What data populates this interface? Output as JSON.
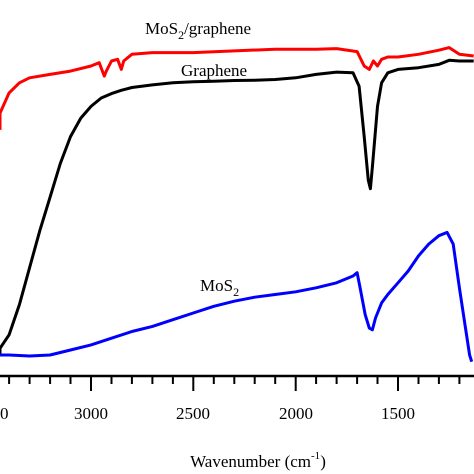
{
  "chart_data": {
    "type": "line",
    "xlabel": "Wavenumber (cm",
    "xlabel_sup": "-1",
    "xlabel_close": ")",
    "x_reversed": true,
    "xlim": [
      3500,
      1130
    ],
    "x_ticks_labeled": [
      3000,
      2500,
      2000,
      1500
    ],
    "x_tick_labels": [
      "3000",
      "2500",
      "2000",
      "1500"
    ],
    "left_partial_tick_label": "0",
    "ylim": [
      0,
      100
    ],
    "grid": false,
    "legend": "none",
    "series": [
      {
        "name": "MoS2/graphene",
        "label_text": "MoS",
        "label_sub": "2",
        "label_rest": "/graphene",
        "color": "#ff0000",
        "points": [
          [
            3500,
            67
          ],
          [
            3450,
            72
          ],
          [
            3400,
            78
          ],
          [
            3350,
            81
          ],
          [
            3300,
            82.5
          ],
          [
            3200,
            83.5
          ],
          [
            3100,
            84.5
          ],
          [
            3000,
            86
          ],
          [
            2960,
            87
          ],
          [
            2935,
            83
          ],
          [
            2925,
            84.5
          ],
          [
            2900,
            87.5
          ],
          [
            2870,
            88
          ],
          [
            2852,
            85
          ],
          [
            2840,
            87.5
          ],
          [
            2800,
            89.5
          ],
          [
            2700,
            90
          ],
          [
            2500,
            90
          ],
          [
            2300,
            90.5
          ],
          [
            2100,
            91
          ],
          [
            1900,
            91
          ],
          [
            1800,
            91.2
          ],
          [
            1700,
            90.3
          ],
          [
            1665,
            86
          ],
          [
            1640,
            85
          ],
          [
            1620,
            87.5
          ],
          [
            1600,
            86
          ],
          [
            1580,
            88
          ],
          [
            1550,
            88.7
          ],
          [
            1500,
            88.7
          ],
          [
            1400,
            89.5
          ],
          [
            1300,
            90.7
          ],
          [
            1250,
            91.5
          ],
          [
            1200,
            89.5
          ],
          [
            1130,
            89
          ]
        ]
      },
      {
        "name": "Graphene",
        "label_text": "Graphene",
        "color": "#000000",
        "points": [
          [
            3500,
            0
          ],
          [
            3450,
            2
          ],
          [
            3400,
            6
          ],
          [
            3350,
            15
          ],
          [
            3300,
            26
          ],
          [
            3250,
            37
          ],
          [
            3200,
            47
          ],
          [
            3150,
            57
          ],
          [
            3100,
            65
          ],
          [
            3050,
            70.5
          ],
          [
            3000,
            74
          ],
          [
            2950,
            76.5
          ],
          [
            2900,
            77.8
          ],
          [
            2850,
            78.8
          ],
          [
            2800,
            79.6
          ],
          [
            2700,
            80.4
          ],
          [
            2600,
            81
          ],
          [
            2500,
            81.3
          ],
          [
            2400,
            81.5
          ],
          [
            2300,
            81.7
          ],
          [
            2200,
            81.8
          ],
          [
            2100,
            82
          ],
          [
            2000,
            82.5
          ],
          [
            1900,
            83.5
          ],
          [
            1800,
            84.2
          ],
          [
            1720,
            84
          ],
          [
            1690,
            80
          ],
          [
            1665,
            65
          ],
          [
            1645,
            52
          ],
          [
            1635,
            49.5
          ],
          [
            1625,
            56
          ],
          [
            1600,
            74
          ],
          [
            1580,
            81
          ],
          [
            1550,
            84
          ],
          [
            1500,
            85
          ],
          [
            1400,
            85.5
          ],
          [
            1300,
            86.5
          ],
          [
            1250,
            87.7
          ],
          [
            1200,
            87.5
          ],
          [
            1130,
            87.5
          ]
        ]
      },
      {
        "name": "MoS2",
        "label_text": "MoS",
        "label_sub": "2",
        "color": "#0000ff",
        "points": [
          [
            3500,
            0
          ],
          [
            3400,
            0
          ],
          [
            3300,
            -0.3
          ],
          [
            3200,
            0
          ],
          [
            3100,
            1.5
          ],
          [
            3000,
            3
          ],
          [
            2900,
            5
          ],
          [
            2800,
            7
          ],
          [
            2700,
            8.5
          ],
          [
            2600,
            10.5
          ],
          [
            2500,
            12.5
          ],
          [
            2400,
            14.5
          ],
          [
            2300,
            16
          ],
          [
            2200,
            17.2
          ],
          [
            2100,
            18
          ],
          [
            2000,
            18.8
          ],
          [
            1900,
            20
          ],
          [
            1800,
            21.5
          ],
          [
            1720,
            23.5
          ],
          [
            1700,
            24.5
          ],
          [
            1685,
            20
          ],
          [
            1660,
            12
          ],
          [
            1640,
            8
          ],
          [
            1625,
            7.5
          ],
          [
            1610,
            11
          ],
          [
            1580,
            15.5
          ],
          [
            1550,
            18
          ],
          [
            1500,
            21.5
          ],
          [
            1450,
            25
          ],
          [
            1400,
            29.5
          ],
          [
            1350,
            33
          ],
          [
            1300,
            35.5
          ],
          [
            1260,
            36.5
          ],
          [
            1230,
            33
          ],
          [
            1200,
            20
          ],
          [
            1170,
            8
          ],
          [
            1150,
            0
          ],
          [
            1140,
            -2
          ]
        ]
      }
    ]
  }
}
